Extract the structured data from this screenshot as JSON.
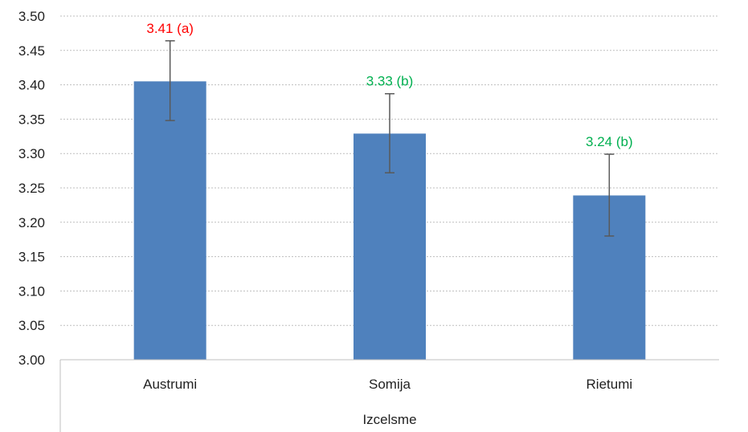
{
  "chart_data": {
    "type": "bar",
    "categories": [
      "Austrumi",
      "Somija",
      "Rietumi"
    ],
    "values": [
      3.405,
      3.329,
      3.239
    ],
    "error_low": [
      3.348,
      3.272,
      3.18
    ],
    "error_high": [
      3.464,
      3.387,
      3.299
    ],
    "data_labels": [
      "3.41 (a)",
      "3.33 (b)",
      "3.24 (b)"
    ],
    "data_label_colors": [
      "#ff0000",
      "#00b050",
      "#00b050"
    ],
    "bar_color": "#4f81bd",
    "xlabel": "Izcelsme",
    "ylabel": "",
    "title": "",
    "ylim": [
      3.0,
      3.5
    ],
    "yticks": [
      "3.00",
      "3.05",
      "3.10",
      "3.15",
      "3.20",
      "3.25",
      "3.30",
      "3.35",
      "3.40",
      "3.45",
      "3.50"
    ],
    "grid": true
  }
}
